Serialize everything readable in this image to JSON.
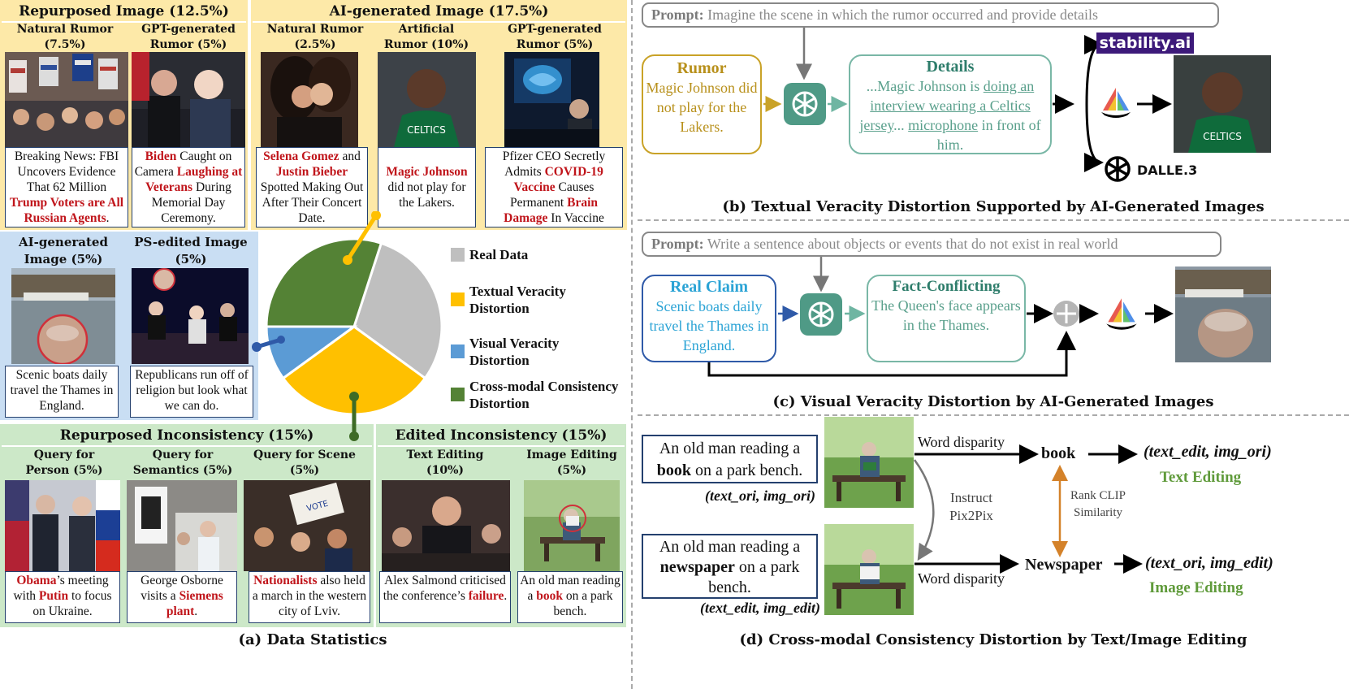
{
  "panel_a": {
    "repurposed_image": "Repurposed Image (12.5%)",
    "ai_generated_image": "AI-generated Image (17.5%)",
    "sub_natural_rumor_1": "Natural Rumor (7.5%)",
    "sub_gpt_rumor_1": "GPT-generated Rumor (5%)",
    "sub_natural_rumor_2": "Natural Rumor (2.5%)",
    "sub_artificial_rumor": "Artificial Rumor (10%)",
    "sub_gpt_rumor_2": "GPT-generated Rumor (5%)",
    "ai_image_small": "AI-generated Image (5%)",
    "ps_image_small": "PS-edited Image (5%)",
    "repurposed_inconsistency": "Repurposed Inconsistency (15%)",
    "edited_inconsistency": "Edited Inconsistency (15%)",
    "q_person": "Query for Person (5%)",
    "q_semantics": "Query for Semantics (5%)",
    "q_scene": "Query for Scene (5%)",
    "text_editing": "Text Editing (10%)",
    "image_editing": "Image Editing (5%)",
    "caption": "(a) Data Statistics",
    "captions": {
      "c1_a": "Breaking News: FBI Uncovers Evidence That 62 Million ",
      "c1_b": "Trump Voters are All Russian Agents",
      "c1_c": ".",
      "c2_a": "Biden",
      "c2_b": " Caught on Camera ",
      "c2_c": "Laughing at Veterans",
      "c2_d": " During Memorial Day Ceremony.",
      "c3_a": "Selena Gomez",
      "c3_b": " and ",
      "c3_c": "Justin Bieber",
      "c3_d": " Spotted Making Out After Their Concert Date.",
      "c4_a": "Magic Johnson",
      "c4_b": " did not play for the Lakers.",
      "c5_a": "Pfizer CEO Secretly Admits ",
      "c5_b": "COVID-19 Vaccine",
      "c5_c": " Causes Permanent ",
      "c5_d": "Brain Damage",
      "c5_e": " In Vaccine Recipients.",
      "c6": "Scenic boats daily travel the Thames in England.",
      "c7": "Republicans run off of religion but look what we can do.",
      "c8_a": "Obama",
      "c8_b": "’s meeting with ",
      "c8_c": "Putin",
      "c8_d": " to focus on Ukraine.",
      "c9_a": "George Osborne visits a ",
      "c9_b": "Siemens plant",
      "c9_c": ".",
      "c10_a": "Nationalists",
      "c10_b": " also held a march in the western city of Lviv.",
      "c11_a": "Alex Salmond criticised the conference’s ",
      "c11_b": "failure",
      "c11_c": ".",
      "c12_a": "An old man reading a ",
      "c12_b": "book",
      "c12_c": " on a park bench."
    }
  },
  "legend": [
    {
      "label": "Real Data",
      "color": "#bfbfbf"
    },
    {
      "label": "Textual Veracity Distortion",
      "color": "#ffc000"
    },
    {
      "label": "Visual Veracity Distortion",
      "color": "#5b9bd5"
    },
    {
      "label": "Cross-modal Consistency Distortion",
      "color": "#548235"
    }
  ],
  "chart_data": {
    "type": "pie",
    "categories": [
      "Real Data",
      "Textual Veracity Distortion",
      "Visual Veracity Distortion",
      "Cross-modal Consistency Distortion"
    ],
    "values": [
      30,
      30,
      10,
      30
    ]
  },
  "panel_b": {
    "prompt_label": "Prompt:",
    "prompt_text": " Imagine the scene in which the rumor occurred and provide details",
    "rumor_title": "Rumor",
    "rumor_text": "Magic Johnson did not play for the Lakers.",
    "details_title": "Details",
    "details_text_a": "...Magic Johnson is ",
    "details_text_b": "doing an interview wearing a Celtics jersey",
    "details_text_c": "... ",
    "details_text_d": "microphone",
    "details_text_e": " in front of him.",
    "stability": "stability.ai",
    "dalle": "DALLE.3",
    "caption": "(b) Textual Veracity Distortion Supported by AI-Generated Images"
  },
  "panel_c": {
    "prompt_label": "Prompt:",
    "prompt_text": " Write a sentence about objects or events that do not exist in real world",
    "real_title": "Real Claim",
    "real_text": "Scenic boats daily travel the Thames in England.",
    "fact_title": "Fact-Conflicting",
    "fact_text": "The Queen's face appears in the Thames.",
    "caption": "(c) Visual Veracity Distortion by AI-Generated Images"
  },
  "panel_d": {
    "orig_a": "An old man reading a ",
    "orig_b": "book",
    "orig_c": " on a park bench.",
    "orig_tag": "(text_ori, img_ori)",
    "edit_a": "An old man reading a ",
    "edit_b": "newspaper",
    "edit_c": " on a park bench.",
    "edit_tag": "(text_edit, img_edit)",
    "word_disparity_1": "Word disparity",
    "word_disparity_2": "Word disparity",
    "instruct": "Instruct Pix2Pix",
    "book": "book",
    "newspaper": "Newspaper",
    "rank": "Rank CLIP Similarity",
    "res_text": "(text_edit, img_ori)",
    "res_image": "(text_ori, img_edit)",
    "text_editing": "Text Editing",
    "image_editing": "Image Editing",
    "caption": "(d) Cross-modal Consistency Distortion by Text/Image Editing"
  }
}
